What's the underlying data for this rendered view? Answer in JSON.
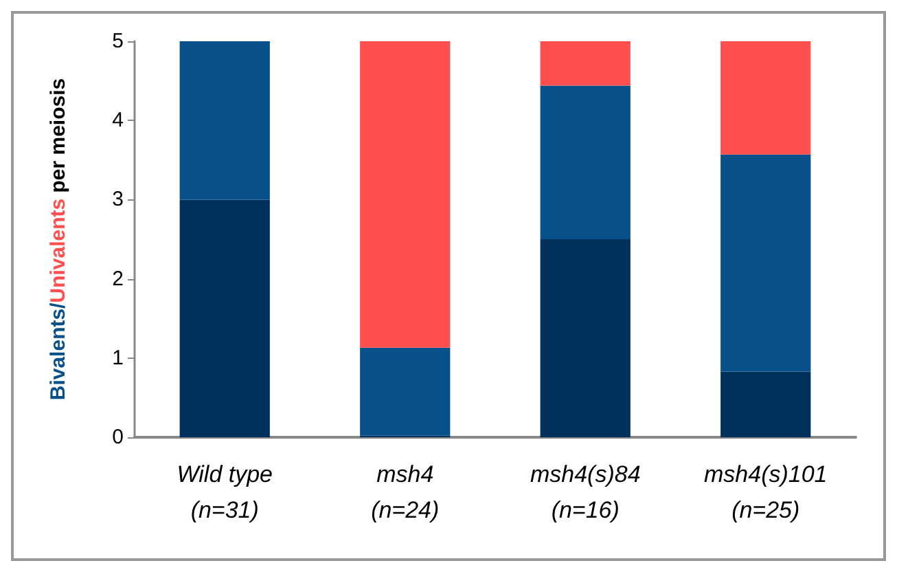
{
  "chart_data": {
    "type": "bar",
    "stacked": true,
    "ylabel": "Bivalents/Univalents per meiosis",
    "categories": [
      "Wild type\n(n=31)",
      "msh4\n(n=24)",
      "msh4(s)84\n(n=16)",
      "msh4(s)101\n(n=25)"
    ],
    "series": [
      {
        "color": "#00305c",
        "values": [
          3,
          0.02,
          2.5,
          0.83
        ]
      },
      {
        "color": "#07508a",
        "values": [
          2,
          1.11,
          1.94,
          2.74
        ]
      },
      {
        "color": "#ff4f4f",
        "values": [
          0,
          3.87,
          0.56,
          1.43
        ]
      }
    ],
    "ylim": [
      0,
      5
    ],
    "yticks": [
      0,
      1,
      2,
      3,
      4,
      5
    ],
    "grid": false
  }
}
